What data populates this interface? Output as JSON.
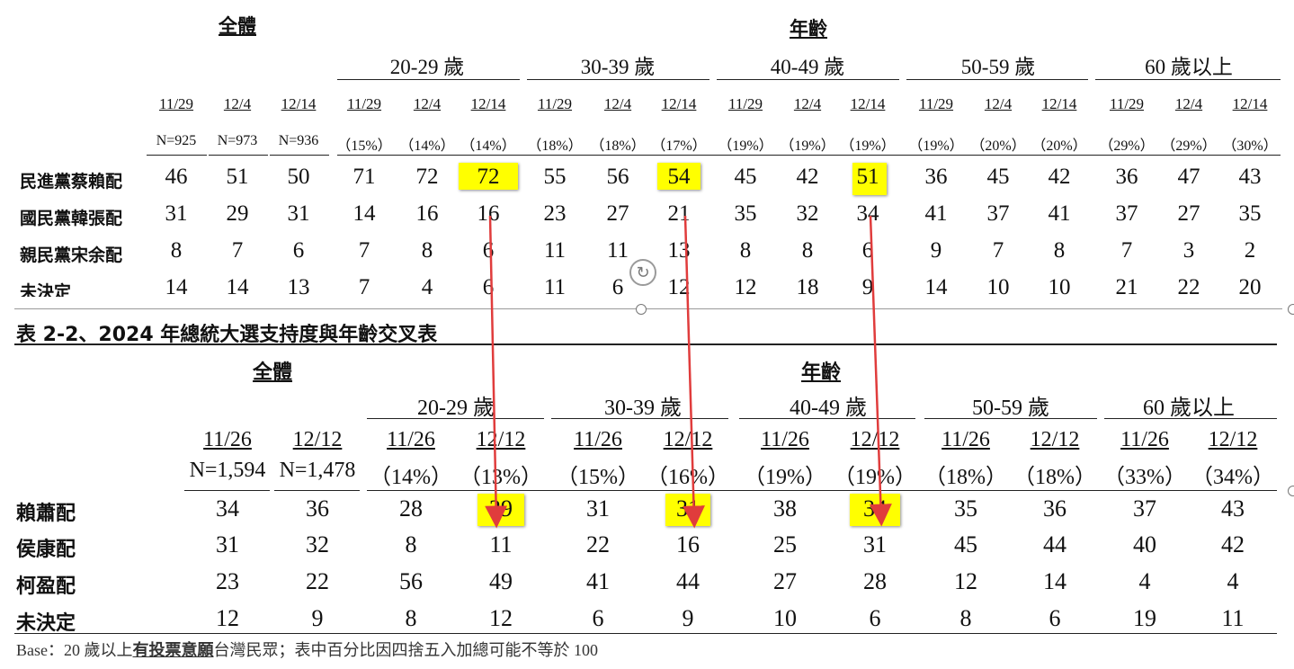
{
  "table1": {
    "overall_label": "全體",
    "age_label": "年齡",
    "overall_dates": [
      "11/29",
      "12/4",
      "12/14"
    ],
    "overall_n": [
      "N=925",
      "N=973",
      "N=936"
    ],
    "groups": [
      {
        "name": "20-29 歲",
        "dates": [
          "11/29",
          "12/4",
          "12/14"
        ],
        "shares": [
          "（15%）",
          "（14%）",
          "（14%）"
        ]
      },
      {
        "name": "30-39 歲",
        "dates": [
          "11/29",
          "12/4",
          "12/14"
        ],
        "shares": [
          "（18%）",
          "（18%）",
          "（17%）"
        ]
      },
      {
        "name": "40-49 歲",
        "dates": [
          "11/29",
          "12/4",
          "12/14"
        ],
        "shares": [
          "（19%）",
          "（19%）",
          "（19%）"
        ]
      },
      {
        "name": "50-59 歲",
        "dates": [
          "11/29",
          "12/4",
          "12/14"
        ],
        "shares": [
          "（19%）",
          "（20%）",
          "（20%）"
        ]
      },
      {
        "name": "60 歲以上",
        "dates": [
          "11/29",
          "12/4",
          "12/14"
        ],
        "shares": [
          "（29%）",
          "（29%）",
          "（30%）"
        ]
      }
    ],
    "rows": [
      {
        "label": "民進黨蔡賴配",
        "values": [
          "46",
          "51",
          "50",
          "71",
          "72",
          "72",
          "55",
          "56",
          "54",
          "45",
          "42",
          "51",
          "36",
          "45",
          "42",
          "36",
          "47",
          "43"
        ]
      },
      {
        "label": "國民黨韓張配",
        "values": [
          "31",
          "29",
          "31",
          "14",
          "16",
          "16",
          "23",
          "27",
          "21",
          "35",
          "32",
          "34",
          "41",
          "37",
          "41",
          "37",
          "27",
          "35"
        ]
      },
      {
        "label": "親民黨宋余配",
        "values": [
          "8",
          "7",
          "6",
          "7",
          "8",
          "6",
          "11",
          "11",
          "13",
          "8",
          "8",
          "6",
          "9",
          "7",
          "8",
          "7",
          "3",
          "2"
        ]
      },
      {
        "label": "未決定",
        "values": [
          "14",
          "14",
          "13",
          "7",
          "4",
          "6",
          "11",
          "6",
          "12",
          "12",
          "18",
          "9",
          "14",
          "10",
          "10",
          "21",
          "22",
          "20"
        ]
      }
    ],
    "highlight_color": "#ffff00"
  },
  "table2": {
    "title": "表 2-2、2024 年總統大選支持度與年齡交叉表",
    "overall_label": "全體",
    "age_label": "年齡",
    "overall_dates": [
      "11/26",
      "12/12"
    ],
    "overall_n": [
      "N=1,594",
      "N=1,478"
    ],
    "groups": [
      {
        "name": "20-29 歲",
        "dates": [
          "11/26",
          "12/12"
        ],
        "shares": [
          "（14%）",
          "（13%）"
        ]
      },
      {
        "name": "30-39 歲",
        "dates": [
          "11/26",
          "12/12"
        ],
        "shares": [
          "（15%）",
          "（16%）"
        ]
      },
      {
        "name": "40-49 歲",
        "dates": [
          "11/26",
          "12/12"
        ],
        "shares": [
          "（19%）",
          "（19%）"
        ]
      },
      {
        "name": "50-59 歲",
        "dates": [
          "11/26",
          "12/12"
        ],
        "shares": [
          "（18%）",
          "（18%）"
        ]
      },
      {
        "name": "60 歲以上",
        "dates": [
          "11/26",
          "12/12"
        ],
        "shares": [
          "（33%）",
          "（34%）"
        ]
      }
    ],
    "rows": [
      {
        "label": "賴蕭配",
        "values": [
          "34",
          "36",
          "28",
          "29",
          "31",
          "31",
          "38",
          "34",
          "35",
          "36",
          "37",
          "43"
        ]
      },
      {
        "label": "侯康配",
        "values": [
          "31",
          "32",
          "8",
          "11",
          "22",
          "16",
          "25",
          "31",
          "45",
          "44",
          "40",
          "42"
        ]
      },
      {
        "label": "柯盈配",
        "values": [
          "23",
          "22",
          "56",
          "49",
          "41",
          "44",
          "27",
          "28",
          "12",
          "14",
          "4",
          "4"
        ]
      },
      {
        "label": "未決定",
        "values": [
          "12",
          "9",
          "8",
          "12",
          "6",
          "9",
          "10",
          "6",
          "8",
          "6",
          "19",
          "11"
        ]
      }
    ],
    "base_note_prefix": "Base：20 歲以上",
    "base_note_bold": "有投票意願",
    "base_note_suffix": "台灣民眾；表中百分比因四捨五入加總可能不等於 100"
  },
  "annotation": {
    "arrow_color": "#e03c3c",
    "highlight_color": "#ffff00"
  }
}
